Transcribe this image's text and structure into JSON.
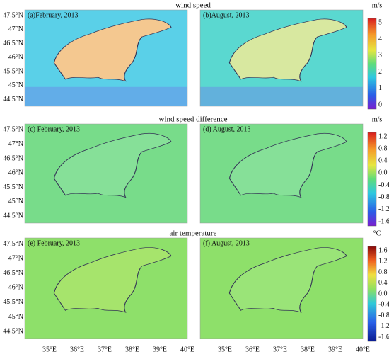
{
  "rows": [
    {
      "title": "wind speed",
      "panels": [
        {
          "label": "(a)February, 2013"
        },
        {
          "label": "(b)August, 2013"
        }
      ],
      "colorbar": {
        "unit": "m/s",
        "ticks": [
          "5",
          "4",
          "3",
          "2",
          "1",
          "0"
        ]
      }
    },
    {
      "title": "wind speed difference",
      "panels": [
        {
          "label": "(c) February, 2013"
        },
        {
          "label": "(d) August, 2013"
        }
      ],
      "colorbar": {
        "unit": "m/s",
        "ticks": [
          "1.2",
          "0.8",
          "0.4",
          "0.0",
          "-0.4",
          "-0.8",
          "-1.2",
          "-1.6"
        ]
      }
    },
    {
      "title": "air temperature",
      "panels": [
        {
          "label": "(e) February, 2013"
        },
        {
          "label": "(f)  August, 2013"
        }
      ],
      "colorbar": {
        "unit": "°C",
        "ticks": [
          "1.6",
          "1.2",
          "0.8",
          "0.4",
          "0.0",
          "-0.4",
          "-0.8",
          "-1.2",
          "-1.6"
        ]
      }
    }
  ],
  "lat_ticks": [
    "47.5°N",
    "47°N",
    "46.5°N",
    "46°N",
    "45.5°N",
    "45°N",
    "44.5°N"
  ],
  "lon_ticks": [
    "35°E",
    "36°E",
    "37°E",
    "38°E",
    "39°E",
    "40°E"
  ]
}
